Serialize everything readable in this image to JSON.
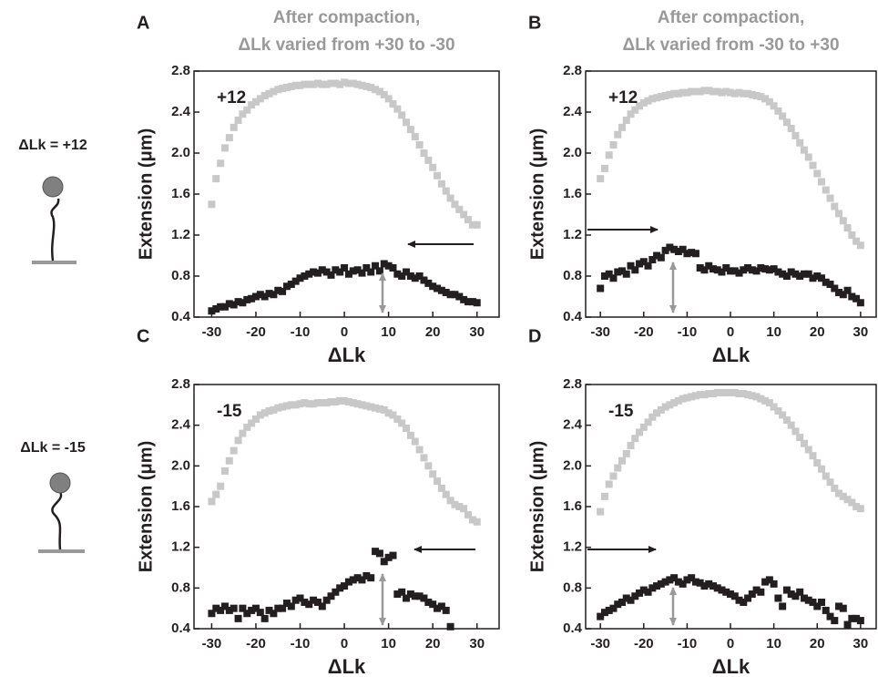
{
  "side_labels": [
    "ΔLk = +12",
    "ΔLk = -15"
  ],
  "chart_data": [
    {
      "type": "scatter",
      "panel": "A",
      "title": [
        "After compaction,",
        "ΔLk  varied from +30 to -30"
      ],
      "annotation": "+12",
      "xlabel": "ΔLk",
      "ylabel": "Extension (μm)",
      "xlim": [
        -34,
        35
      ],
      "ylim": [
        0.4,
        2.8
      ],
      "xticks": [
        -30,
        -20,
        -10,
        0,
        10,
        20,
        30
      ],
      "yticks": [
        0.4,
        0.8,
        1.2,
        1.6,
        {
          "value": 2,
          "label": "2.0"
        },
        2.4,
        2.8
      ],
      "x": [
        -30,
        -29,
        -28,
        -27,
        -26,
        -25,
        -24,
        -23,
        -22,
        -21,
        -20,
        -19,
        -18,
        -17,
        -16,
        -15,
        -14,
        -13,
        -12,
        -11,
        -10,
        -9,
        -8,
        -7,
        -6,
        -5,
        -4,
        -3,
        -2,
        -1,
        0,
        1,
        2,
        3,
        4,
        5,
        6,
        7,
        8,
        9,
        10,
        11,
        12,
        13,
        14,
        15,
        16,
        17,
        18,
        19,
        20,
        21,
        22,
        23,
        24,
        25,
        26,
        27,
        28,
        29,
        30
      ],
      "series": [
        {
          "color": "#c8c8c8",
          "values": [
            1.5,
            1.75,
            1.9,
            2.05,
            2.15,
            2.25,
            2.32,
            2.38,
            2.42,
            2.47,
            2.5,
            2.53,
            2.56,
            2.58,
            2.6,
            2.62,
            2.63,
            2.64,
            2.65,
            2.66,
            2.66,
            2.67,
            2.67,
            2.67,
            2.68,
            2.67,
            2.67,
            2.68,
            2.68,
            2.67,
            2.69,
            2.68,
            2.68,
            2.67,
            2.66,
            2.65,
            2.64,
            2.62,
            2.6,
            2.57,
            2.53,
            2.48,
            2.43,
            2.37,
            2.3,
            2.23,
            2.16,
            2.08,
            2.0,
            1.93,
            1.86,
            1.78,
            1.7,
            1.63,
            1.56,
            1.5,
            1.45,
            1.4,
            1.35,
            1.3,
            1.3
          ]
        },
        {
          "color": "#231f20",
          "values": [
            0.46,
            0.48,
            0.5,
            0.5,
            0.53,
            0.52,
            0.55,
            0.54,
            0.57,
            0.58,
            0.6,
            0.62,
            0.6,
            0.63,
            0.62,
            0.66,
            0.65,
            0.7,
            0.72,
            0.75,
            0.78,
            0.8,
            0.82,
            0.84,
            0.83,
            0.86,
            0.84,
            0.81,
            0.86,
            0.84,
            0.88,
            0.82,
            0.85,
            0.86,
            0.83,
            0.88,
            0.84,
            0.9,
            0.85,
            0.92,
            0.9,
            0.88,
            0.82,
            0.8,
            0.84,
            0.8,
            0.78,
            0.8,
            0.76,
            0.73,
            0.7,
            0.68,
            0.66,
            0.64,
            0.62,
            0.62,
            0.6,
            0.57,
            0.55,
            0.55,
            0.54
          ]
        }
      ]
    },
    {
      "type": "scatter",
      "panel": "B",
      "title": [
        "After compaction,",
        "ΔLk varied from -30 to +30"
      ],
      "annotation": "+12",
      "xlabel": "ΔLk",
      "ylabel": "Extension (μm)",
      "xlim": [
        -33.4,
        33.6
      ],
      "ylim": [
        0.4,
        2.8
      ],
      "xticks": [
        -30,
        -20,
        -10,
        0,
        10,
        20,
        30
      ],
      "yticks": [
        0.4,
        0.8,
        1.2,
        1.6,
        {
          "value": 2,
          "label": "2.0"
        },
        2.4,
        2.8
      ],
      "x": [
        -30,
        -29,
        -28,
        -27,
        -26,
        -25,
        -24,
        -23,
        -22,
        -21,
        -20,
        -19,
        -18,
        -17,
        -16,
        -15,
        -14,
        -13,
        -12,
        -11,
        -10,
        -9,
        -8,
        -7,
        -6,
        -5,
        -4,
        -3,
        -2,
        -1,
        0,
        1,
        2,
        3,
        4,
        5,
        6,
        7,
        8,
        9,
        10,
        11,
        12,
        13,
        14,
        15,
        16,
        17,
        18,
        19,
        20,
        21,
        22,
        23,
        24,
        25,
        26,
        27,
        28,
        29,
        30
      ],
      "series": [
        {
          "color": "#c8c8c8",
          "values": [
            1.75,
            1.85,
            1.98,
            2.08,
            2.18,
            2.25,
            2.32,
            2.38,
            2.42,
            2.46,
            2.49,
            2.51,
            2.53,
            2.54,
            2.55,
            2.56,
            2.57,
            2.58,
            2.58,
            2.59,
            2.59,
            2.6,
            2.6,
            2.6,
            2.61,
            2.61,
            2.6,
            2.6,
            2.59,
            2.6,
            2.59,
            2.58,
            2.59,
            2.58,
            2.58,
            2.57,
            2.56,
            2.55,
            2.53,
            2.5,
            2.46,
            2.41,
            2.36,
            2.3,
            2.24,
            2.17,
            2.1,
            2.03,
            1.96,
            1.88,
            1.8,
            1.72,
            1.64,
            1.56,
            1.48,
            1.41,
            1.34,
            1.27,
            1.2,
            1.14,
            1.1
          ]
        },
        {
          "color": "#231f20",
          "values": [
            0.68,
            0.8,
            0.82,
            0.78,
            0.84,
            0.85,
            0.82,
            0.9,
            0.86,
            0.92,
            0.94,
            0.9,
            0.96,
            1.0,
            0.98,
            1.05,
            1.08,
            1.06,
            1.04,
            1.06,
            1.02,
            1.03,
            1.02,
            0.88,
            0.86,
            0.9,
            0.87,
            0.86,
            0.84,
            0.88,
            0.85,
            0.85,
            0.83,
            0.86,
            0.88,
            0.86,
            0.85,
            0.88,
            0.87,
            0.86,
            0.87,
            0.84,
            0.82,
            0.8,
            0.84,
            0.82,
            0.8,
            0.82,
            0.82,
            0.78,
            0.8,
            0.78,
            0.74,
            0.72,
            0.68,
            0.64,
            0.62,
            0.66,
            0.6,
            0.58,
            0.54
          ]
        }
      ]
    },
    {
      "type": "scatter",
      "panel": "C",
      "annotation": "-15",
      "xlabel": "ΔLk",
      "ylabel": "Extension (μm)",
      "xlim": [
        -34,
        35
      ],
      "ylim": [
        0.4,
        2.8
      ],
      "xticks": [
        -30,
        -20,
        -10,
        0,
        10,
        20,
        30
      ],
      "yticks": [
        0.4,
        0.8,
        1.2,
        1.6,
        {
          "value": 2,
          "label": "2.0"
        },
        2.4,
        2.8
      ],
      "x": [
        -30,
        -29,
        -28,
        -27,
        -26,
        -25,
        -24,
        -23,
        -22,
        -21,
        -20,
        -19,
        -18,
        -17,
        -16,
        -15,
        -14,
        -13,
        -12,
        -11,
        -10,
        -9,
        -8,
        -7,
        -6,
        -5,
        -4,
        -3,
        -2,
        -1,
        0,
        1,
        2,
        3,
        4,
        5,
        6,
        7,
        8,
        9,
        10,
        11,
        12,
        13,
        14,
        15,
        16,
        17,
        18,
        19,
        20,
        21,
        22,
        23,
        24,
        25,
        26,
        27,
        28,
        29,
        30
      ],
      "series": [
        {
          "color": "#c8c8c8",
          "values": [
            1.65,
            1.72,
            1.8,
            1.95,
            2.05,
            2.15,
            2.25,
            2.32,
            2.38,
            2.42,
            2.46,
            2.5,
            2.52,
            2.54,
            2.55,
            2.57,
            2.58,
            2.59,
            2.6,
            2.6,
            2.61,
            2.62,
            2.61,
            2.61,
            2.62,
            2.62,
            2.62,
            2.63,
            2.63,
            2.64,
            2.64,
            2.63,
            2.62,
            2.61,
            2.6,
            2.59,
            2.58,
            2.57,
            2.56,
            2.55,
            2.52,
            2.5,
            2.46,
            2.42,
            2.37,
            2.3,
            2.24,
            2.16,
            2.08,
            2.0,
            1.92,
            1.85,
            1.78,
            1.72,
            1.66,
            1.62,
            1.6,
            1.58,
            1.52,
            1.47,
            1.45
          ]
        },
        {
          "color": "#231f20",
          "values": [
            0.55,
            0.6,
            0.58,
            0.62,
            0.58,
            0.6,
            0.5,
            0.6,
            0.55,
            0.58,
            0.6,
            0.56,
            0.5,
            0.58,
            0.55,
            0.6,
            0.6,
            0.65,
            0.62,
            0.68,
            0.7,
            0.66,
            0.64,
            0.68,
            0.66,
            0.62,
            0.68,
            0.72,
            0.76,
            0.8,
            0.82,
            0.86,
            0.88,
            0.9,
            0.88,
            0.92,
            0.9,
            1.16,
            1.14,
            1.06,
            1.1,
            1.12,
            0.74,
            0.76,
            0.7,
            0.74,
            0.72,
            0.72,
            0.7,
            0.66,
            0.64,
            0.6,
            0.62,
            0.58,
            0.42,
            null,
            null,
            null,
            null,
            null,
            null
          ]
        }
      ]
    },
    {
      "type": "scatter",
      "panel": "D",
      "annotation": "-15",
      "xlabel": "ΔLk",
      "ylabel": "Extension (μm)",
      "xlim": [
        -33.4,
        33.6
      ],
      "ylim": [
        0.4,
        2.8
      ],
      "xticks": [
        -30,
        -20,
        -10,
        0,
        10,
        20,
        30
      ],
      "yticks": [
        0.4,
        0.8,
        1.2,
        1.6,
        {
          "value": 2,
          "label": "2.0"
        },
        2.4,
        2.8
      ],
      "x": [
        -30,
        -29,
        -28,
        -27,
        -26,
        -25,
        -24,
        -23,
        -22,
        -21,
        -20,
        -19,
        -18,
        -17,
        -16,
        -15,
        -14,
        -13,
        -12,
        -11,
        -10,
        -9,
        -8,
        -7,
        -6,
        -5,
        -4,
        -3,
        -2,
        -1,
        0,
        1,
        2,
        3,
        4,
        5,
        6,
        7,
        8,
        9,
        10,
        11,
        12,
        13,
        14,
        15,
        16,
        17,
        18,
        19,
        20,
        21,
        22,
        23,
        24,
        25,
        26,
        27,
        28,
        29,
        30
      ],
      "series": [
        {
          "color": "#c8c8c8",
          "values": [
            1.55,
            1.7,
            1.82,
            1.9,
            1.98,
            2.05,
            2.12,
            2.2,
            2.27,
            2.33,
            2.38,
            2.43,
            2.48,
            2.52,
            2.55,
            2.58,
            2.6,
            2.62,
            2.64,
            2.66,
            2.67,
            2.68,
            2.69,
            2.7,
            2.7,
            2.71,
            2.71,
            2.72,
            2.72,
            2.72,
            2.72,
            2.72,
            2.71,
            2.71,
            2.7,
            2.69,
            2.68,
            2.66,
            2.64,
            2.62,
            2.58,
            2.54,
            2.5,
            2.45,
            2.4,
            2.34,
            2.28,
            2.22,
            2.16,
            2.1,
            2.03,
            1.97,
            1.9,
            1.84,
            1.78,
            1.73,
            1.7,
            1.67,
            1.64,
            1.6,
            1.58
          ]
        },
        {
          "color": "#231f20",
          "values": [
            0.52,
            0.56,
            0.58,
            0.6,
            0.64,
            0.66,
            0.7,
            0.68,
            0.72,
            0.75,
            0.78,
            0.76,
            0.8,
            0.82,
            0.84,
            0.86,
            0.88,
            0.9,
            0.86,
            0.84,
            0.88,
            0.9,
            0.86,
            0.85,
            0.82,
            0.84,
            0.82,
            0.8,
            0.78,
            0.76,
            0.74,
            0.72,
            0.68,
            0.66,
            0.7,
            0.74,
            0.78,
            0.76,
            0.86,
            0.88,
            0.84,
            0.7,
            0.62,
            0.78,
            0.74,
            0.72,
            0.76,
            0.7,
            0.68,
            0.66,
            0.62,
            0.66,
            0.58,
            0.52,
            0.48,
            0.62,
            0.6,
            0.44,
            0.5,
            0.5,
            0.48
          ]
        }
      ]
    }
  ]
}
